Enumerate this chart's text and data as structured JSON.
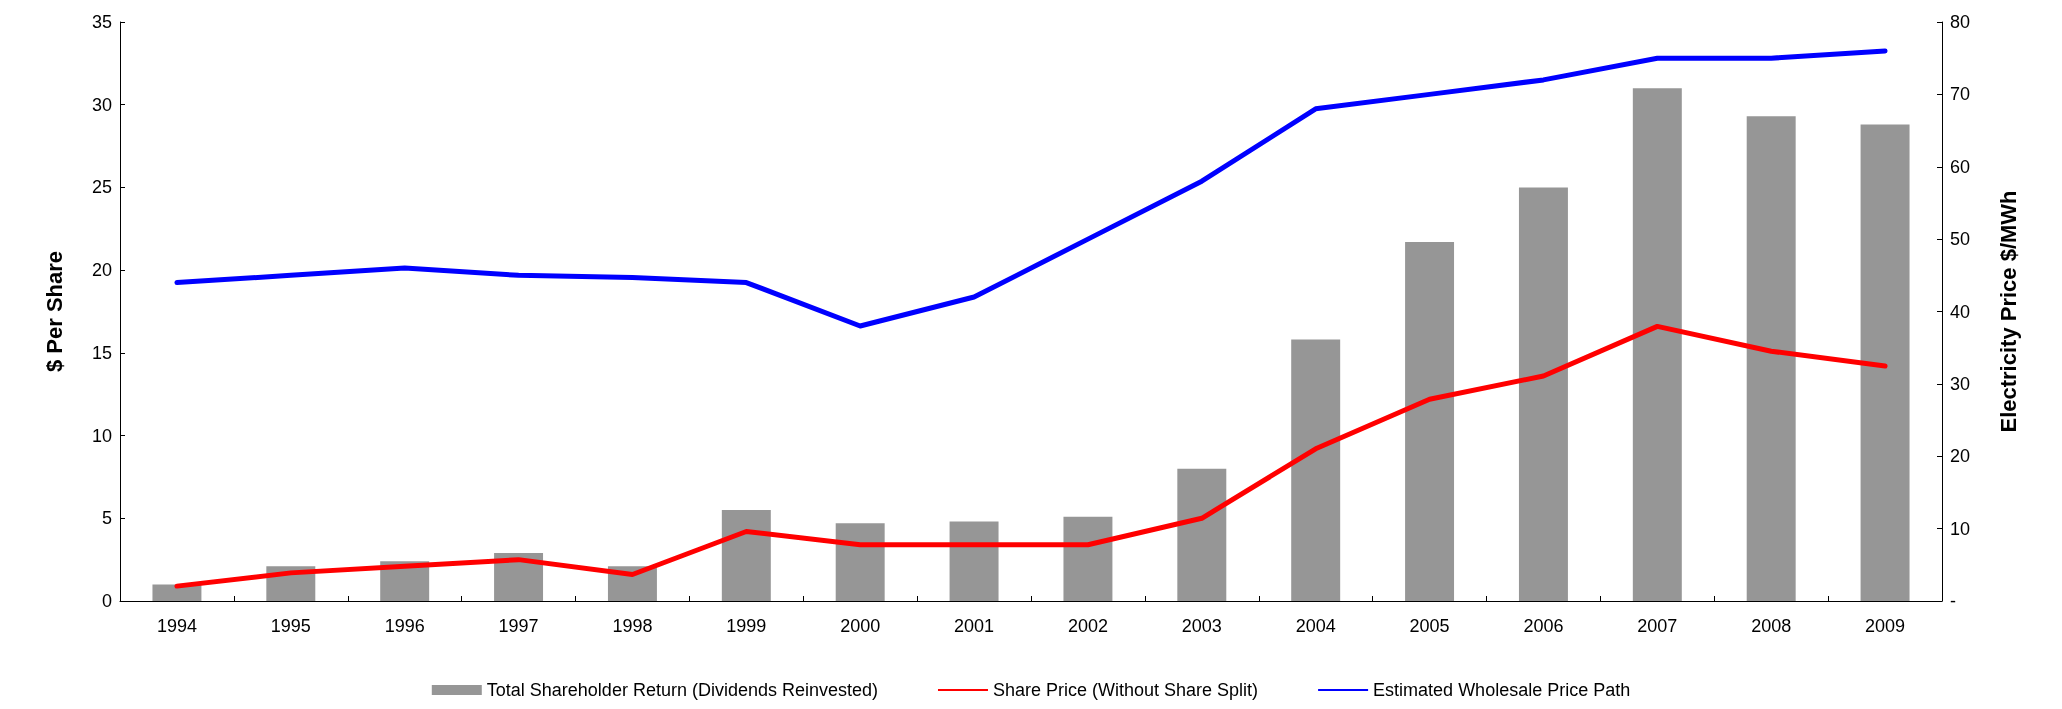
{
  "chart_data": {
    "type": "bar",
    "ylabel": "$ Per Share",
    "y2label": "Electricity Price $/MWh",
    "categories": [
      "1994",
      "1995",
      "1996",
      "1997",
      "1998",
      "1999",
      "2000",
      "2001",
      "2002",
      "2003",
      "2004",
      "2005",
      "2006",
      "2007",
      "2008",
      "2009"
    ],
    "series": [
      {
        "name": "Total Shareholder Return (Dividends Reinvested)",
        "color": "#969696",
        "values": [
          1.0,
          2.1,
          2.4,
          2.9,
          2.1,
          5.5,
          4.7,
          4.8,
          5.1,
          8.0,
          15.8,
          21.7,
          25.0,
          31.0,
          29.3,
          28.8
        ]
      },
      {
        "name": "Share Price (Without Share Split)",
        "type": "line",
        "color": "#ff0000",
        "values": [
          0.9,
          1.7,
          2.1,
          2.5,
          1.6,
          4.2,
          3.4,
          3.4,
          3.4,
          5.0,
          9.2,
          12.2,
          13.6,
          16.6,
          15.1,
          14.2
        ]
      },
      {
        "name": "Estimated Wholesale Price Path",
        "type": "line",
        "axis": "y2",
        "color": "#0000ff",
        "values": [
          44,
          45,
          46,
          45,
          44.7,
          44,
          38,
          42,
          50,
          58,
          68,
          70,
          72,
          75,
          75,
          76
        ]
      }
    ],
    "ylim": [
      0,
      35
    ],
    "yticks": [
      0,
      5,
      10,
      15,
      20,
      25,
      30,
      35
    ],
    "y2lim": [
      0,
      80
    ],
    "y2ticks": [
      {
        "value": 0,
        "label": "-"
      },
      10,
      20,
      30,
      40,
      50,
      60,
      70,
      80
    ],
    "grid": false,
    "legend": "bottom",
    "marker": "none"
  }
}
